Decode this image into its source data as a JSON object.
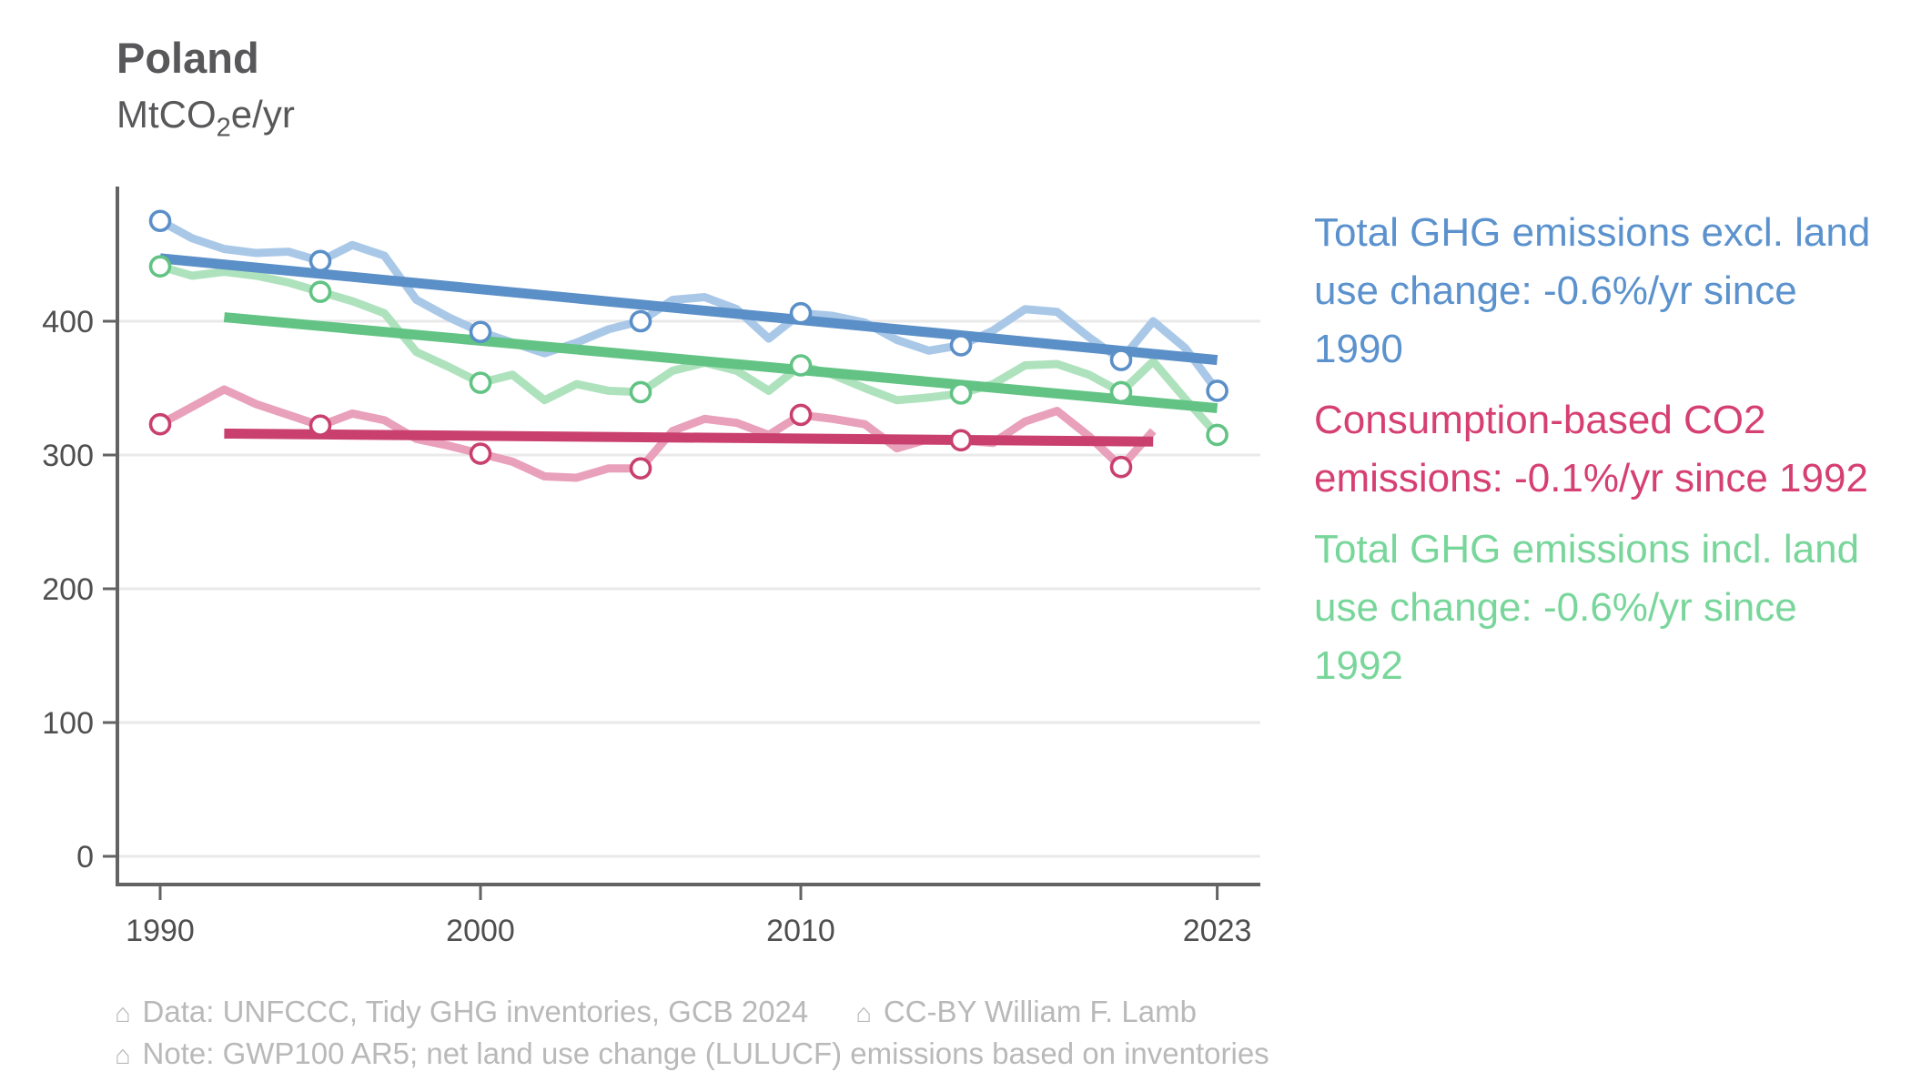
{
  "header": {
    "title": "Poland",
    "subtitle": {
      "pre": "MtCO",
      "sub": "2",
      "post": "e/yr"
    }
  },
  "legend": {
    "items": [
      {
        "text": "Total GHG emissions excl. land use change: -0.6%/yr since 1990",
        "lines": [
          "Total GHG emissions excl. land",
          "use change: -0.6%/yr since",
          "1990"
        ],
        "color": "#5b92cd"
      },
      {
        "text": "Consumption-based CO2 emissions: -0.1%/yr since 1992",
        "lines": [
          "Consumption-based CO2",
          "emissions: -0.1%/yr since 1992"
        ],
        "color": "#d63f72"
      },
      {
        "text": "Total GHG emissions incl. land use change: -0.6%/yr since 1992",
        "lines": [
          "Total GHG emissions incl. land",
          "use change: -0.6%/yr since",
          "1992"
        ],
        "color": "#79d69b"
      }
    ]
  },
  "footer": {
    "line1": [
      {
        "icon": "⌂",
        "text": "Data: UNFCCC, Tidy GHG inventories, GCB 2024"
      },
      {
        "icon": "⌂",
        "text": "CC-BY William F. Lamb"
      }
    ],
    "line2": [
      {
        "icon": "⌂",
        "text": "Note: GWP100 AR5; net land use change (LULUCF) emissions based on inventories"
      }
    ]
  },
  "chart_data": {
    "type": "line",
    "title": "Poland",
    "ylabel": "MtCO2e/yr",
    "xlabel": "",
    "grid": "horizontal-only",
    "legend_position": "right",
    "xlim": [
      1988.7,
      2024.6
    ],
    "ylim": [
      0,
      497
    ],
    "x_ticks": {
      "years": [
        1990,
        2000,
        2010,
        2023
      ],
      "labels": [
        "1990",
        "2000",
        "2010",
        "2023"
      ]
    },
    "y_ticks": {
      "values": [
        0,
        100,
        200,
        300,
        400
      ],
      "labels": [
        "0",
        "100",
        "200",
        "300",
        "400"
      ]
    },
    "series": [
      {
        "id": "ghg-excl-luc",
        "name": "Total GHG emissions excl. land use change",
        "rate_label": "-0.6%/yr since 1990",
        "line_color": "#a9c8e8",
        "trend_color": "#5b8fc7",
        "start_year": 1990,
        "values": [
          475,
          462,
          454,
          451,
          452,
          445,
          457,
          449,
          416,
          403,
          392,
          384,
          376,
          384,
          394,
          400,
          416,
          418,
          409,
          387,
          406,
          404,
          399,
          386,
          378,
          382,
          393,
          409,
          407,
          388,
          371,
          400,
          380,
          348
        ],
        "marker_years": [
          1990,
          1995,
          2000,
          2005,
          2010,
          2015,
          2020,
          2023
        ],
        "trend": {
          "x1": 1990,
          "v1": 447,
          "x2": 2023,
          "v2": 371
        }
      },
      {
        "id": "consumption-co2",
        "name": "Consumption-based CO2 emissions",
        "rate_label": "-0.1%/yr since 1992",
        "line_color": "#e9a0ba",
        "trend_color": "#c9406f",
        "start_year": 1990,
        "values": [
          323,
          336,
          349,
          338,
          330,
          322,
          331,
          326,
          312,
          307,
          301,
          295,
          284,
          283,
          290,
          290,
          318,
          327,
          324,
          315,
          330,
          327,
          323,
          305,
          312,
          311,
          309,
          325,
          333,
          314,
          291,
          318
        ],
        "marker_years": [
          1990,
          1995,
          2000,
          2005,
          2010,
          2015,
          2020
        ],
        "trend": {
          "x1": 1992,
          "v1": 316,
          "x2": 2021,
          "v2": 310
        }
      },
      {
        "id": "ghg-incl-luc",
        "name": "Total GHG emissions incl. land use change",
        "rate_label": "-0.6%/yr since 1992",
        "line_color": "#aee2bd",
        "trend_color": "#62c384",
        "start_year": 1990,
        "values": [
          441,
          434,
          437,
          434,
          429,
          422,
          415,
          406,
          377,
          366,
          354,
          360,
          341,
          353,
          348,
          347,
          363,
          369,
          363,
          348,
          367,
          360,
          350,
          341,
          343,
          346,
          353,
          367,
          368,
          360,
          347,
          370,
          342,
          315
        ],
        "marker_years": [
          1990,
          1995,
          2000,
          2005,
          2010,
          2015,
          2020,
          2023
        ],
        "trend": {
          "x1": 1992,
          "v1": 403,
          "x2": 2023,
          "v2": 335
        }
      }
    ]
  }
}
